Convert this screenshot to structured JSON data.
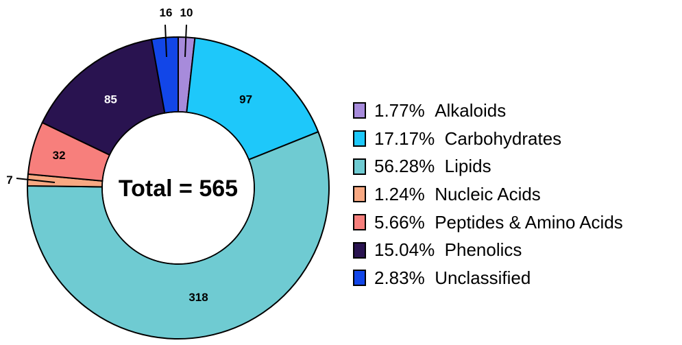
{
  "chart_data": {
    "type": "pie",
    "center_label": "Total = 565",
    "total": 565,
    "categories": [
      "Alkaloids",
      "Carbohydrates",
      "Lipids",
      "Nucleic Acids",
      "Peptides & Amino Acids",
      "Phenolics",
      "Unclassified"
    ],
    "values": [
      10,
      97,
      318,
      7,
      32,
      85,
      16
    ],
    "colors": [
      "#A78BDB",
      "#1EC8FA",
      "#6FCBD2",
      "#F8A882",
      "#F77F7C",
      "#291350",
      "#1246E8"
    ],
    "data_labels": [
      "10",
      "97",
      "318",
      "7",
      "32",
      "85",
      "16"
    ],
    "legend": [
      {
        "percent": "1.77%",
        "name": "Alkaloids"
      },
      {
        "percent": "17.17%",
        "name": "Carbohydrates"
      },
      {
        "percent": "56.28%",
        "name": "Lipids"
      },
      {
        "percent": "1.24%",
        "name": "Nucleic Acids"
      },
      {
        "percent": "5.66%",
        "name": "Peptides & Amino Acids"
      },
      {
        "percent": "15.04%",
        "name": "Phenolics"
      },
      {
        "percent": "2.83%",
        "name": "Unclassified"
      }
    ],
    "legend_position": "right",
    "donut": true
  }
}
